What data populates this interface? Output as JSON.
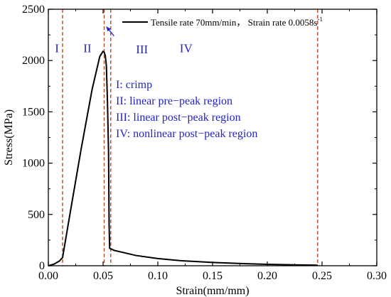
{
  "chart_data": {
    "type": "line",
    "title": "",
    "xlabel": "Strain(mm/mm)",
    "ylabel": "Stress(MPa)",
    "xlim": [
      0,
      0.3
    ],
    "ylim": [
      0,
      2500
    ],
    "xticks": [
      0.0,
      0.05,
      0.1,
      0.15,
      0.2,
      0.25,
      0.3
    ],
    "xtick_labels": [
      "0.00",
      "0.05",
      "0.10",
      "0.15",
      "0.20",
      "0.25",
      "0.30"
    ],
    "yticks": [
      0,
      500,
      1000,
      1500,
      2000,
      2500
    ],
    "ytick_labels": [
      "0",
      "500",
      "1000",
      "1500",
      "2000",
      "2500"
    ],
    "grid": false,
    "legend_position": "top-right",
    "series": [
      {
        "name": "Tensile rate 70mm/min，  Strain rate 0.0058s",
        "name_superscript": "-1",
        "color": "#000000",
        "x": [
          0.0,
          0.005,
          0.01,
          0.013,
          0.02,
          0.03,
          0.04,
          0.047,
          0.05,
          0.051,
          0.052,
          0.053,
          0.054,
          0.055,
          0.0555,
          0.056,
          0.06,
          0.07,
          0.08,
          0.1,
          0.12,
          0.15,
          0.18,
          0.2,
          0.23,
          0.246
        ],
        "y": [
          0,
          15,
          45,
          80,
          520,
          1140,
          1720,
          2040,
          2090,
          2080,
          2050,
          1950,
          1600,
          1100,
          400,
          170,
          150,
          125,
          100,
          70,
          50,
          32,
          20,
          14,
          8,
          5
        ]
      }
    ],
    "vlines": {
      "color": "#b5502a",
      "x": [
        0.013,
        0.051,
        0.057,
        0.246
      ]
    },
    "region_labels": [
      {
        "text": "I",
        "x": 0.006,
        "y": 2080
      },
      {
        "text": "II",
        "x": 0.032,
        "y": 2080
      },
      {
        "text": "III",
        "x": 0.08,
        "y": 2070
      },
      {
        "text": "IV",
        "x": 0.12,
        "y": 2080
      }
    ],
    "arrow": {
      "from": [
        0.06,
        2240
      ],
      "to": [
        0.053,
        2330
      ]
    },
    "annotations": [
      "I: crimp",
      "II: linear pre−peak region",
      "III: linear post−peak region",
      "IV: nonlinear post−peak region"
    ],
    "annotation_color": "#2323c8"
  }
}
